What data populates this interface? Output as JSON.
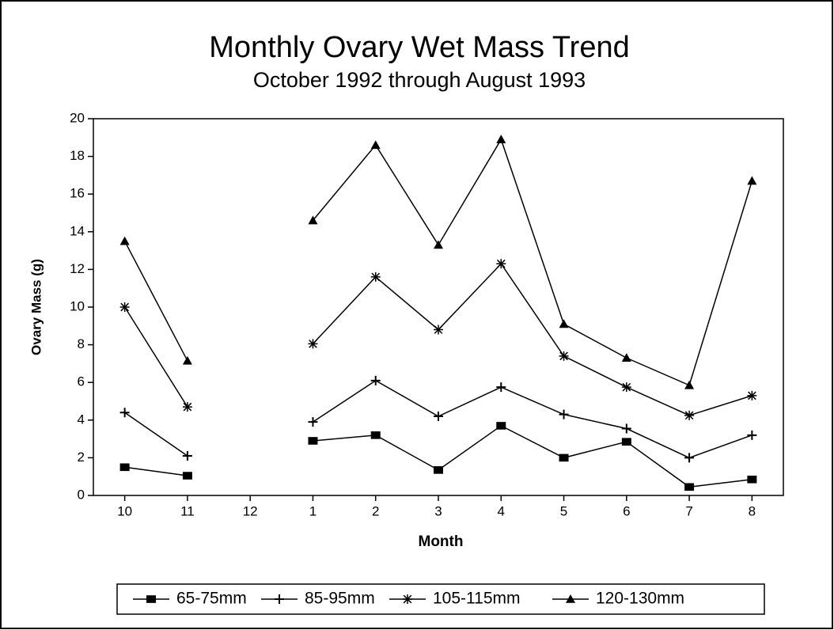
{
  "chart_data": {
    "type": "line",
    "title": "Monthly Ovary Wet Mass Trend",
    "subtitle": "October 1992 through August 1993",
    "x_label": "Month",
    "y_label": "Ovary Mass (g)",
    "categories": [
      "10",
      "11",
      "12",
      "1",
      "2",
      "3",
      "4",
      "5",
      "6",
      "7",
      "8"
    ],
    "series": [
      {
        "name": "65-75mm",
        "color": "#000000",
        "marker": "square",
        "values": [
          1.5,
          1.05,
          null,
          2.9,
          3.2,
          1.35,
          3.7,
          2.0,
          2.85,
          0.45,
          0.85
        ]
      },
      {
        "name": "85-95mm",
        "color": "#000000",
        "marker": "plus",
        "values": [
          4.4,
          2.1,
          null,
          3.9,
          6.1,
          4.2,
          5.75,
          4.3,
          3.55,
          2.0,
          3.2
        ]
      },
      {
        "name": "105-115mm",
        "color": "#000000",
        "marker": "asterisk",
        "values": [
          10.0,
          4.7,
          null,
          8.05,
          11.6,
          8.8,
          12.3,
          7.4,
          5.75,
          4.25,
          5.3
        ]
      },
      {
        "name": "120-130mm",
        "color": "#000000",
        "marker": "triangle",
        "values": [
          13.5,
          7.15,
          null,
          14.6,
          18.6,
          13.3,
          18.9,
          9.1,
          7.3,
          5.85,
          16.7
        ]
      }
    ],
    "ylim": [
      0,
      20
    ],
    "yticks": [
      0,
      2,
      4,
      6,
      8,
      10,
      12,
      14,
      16,
      18,
      20
    ],
    "grid": false,
    "legend": "bottom"
  }
}
